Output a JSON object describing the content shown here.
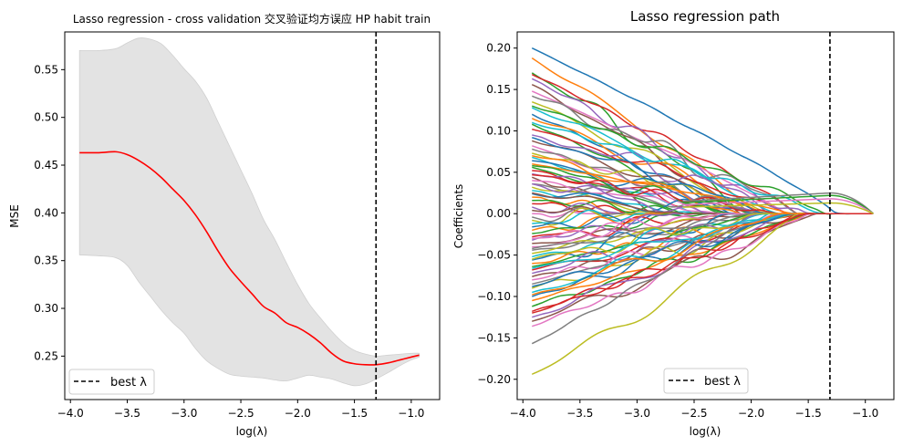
{
  "chart_data": [
    {
      "type": "line",
      "title": "Lasso regression - cross validation 交叉验证均方误应 HP habit train",
      "xlabel": "log(λ)",
      "ylabel": "MSE",
      "xlim": [
        -4.05,
        -0.75
      ],
      "ylim": [
        0.2045,
        0.5895
      ],
      "xticks": [
        -4.0,
        -3.5,
        -3.0,
        -2.5,
        -2.0,
        -1.5,
        -1.0
      ],
      "xtick_labels": [
        "−4.0",
        "−3.5",
        "−3.0",
        "−2.5",
        "−2.0",
        "−1.5",
        "−1.0"
      ],
      "yticks": [
        0.25,
        0.3,
        0.35,
        0.4,
        0.45,
        0.5,
        0.55
      ],
      "ytick_labels": [
        "0.25",
        "0.30",
        "0.35",
        "0.40",
        "0.45",
        "0.50",
        "0.55"
      ],
      "best_lambda_log": -1.31,
      "legend": {
        "label": "best λ",
        "position": "lower-left"
      },
      "series": [
        {
          "color": "#ff0000",
          "x": [
            -3.92,
            -3.75,
            -3.6,
            -3.5,
            -3.4,
            -3.3,
            -3.2,
            -3.1,
            -3.0,
            -2.9,
            -2.8,
            -2.7,
            -2.6,
            -2.5,
            -2.4,
            -2.3,
            -2.2,
            -2.1,
            -2.0,
            -1.9,
            -1.8,
            -1.7,
            -1.6,
            -1.5,
            -1.4,
            -1.31,
            -1.2,
            -1.1,
            -1.0,
            -0.93
          ],
          "y": [
            0.463,
            0.463,
            0.464,
            0.461,
            0.455,
            0.447,
            0.437,
            0.425,
            0.413,
            0.398,
            0.38,
            0.36,
            0.342,
            0.328,
            0.315,
            0.302,
            0.295,
            0.285,
            0.28,
            0.273,
            0.264,
            0.253,
            0.245,
            0.242,
            0.241,
            0.241,
            0.243,
            0.246,
            0.249,
            0.251
          ]
        }
      ],
      "band": {
        "color": "#e3e3e3",
        "x": [
          -3.92,
          -3.75,
          -3.6,
          -3.5,
          -3.4,
          -3.3,
          -3.2,
          -3.1,
          -3.0,
          -2.9,
          -2.8,
          -2.7,
          -2.6,
          -2.5,
          -2.4,
          -2.3,
          -2.2,
          -2.1,
          -2.0,
          -1.9,
          -1.8,
          -1.7,
          -1.6,
          -1.5,
          -1.4,
          -1.31,
          -1.2,
          -1.1,
          -1.0,
          -0.93
        ],
        "upper": [
          0.57,
          0.57,
          0.572,
          0.578,
          0.583,
          0.582,
          0.577,
          0.565,
          0.551,
          0.538,
          0.52,
          0.495,
          0.47,
          0.445,
          0.42,
          0.393,
          0.372,
          0.348,
          0.325,
          0.305,
          0.29,
          0.276,
          0.264,
          0.256,
          0.252,
          0.25,
          0.251,
          0.252,
          0.253,
          0.253
        ],
        "lower": [
          0.356,
          0.355,
          0.353,
          0.345,
          0.328,
          0.313,
          0.298,
          0.285,
          0.274,
          0.258,
          0.245,
          0.237,
          0.231,
          0.229,
          0.228,
          0.227,
          0.225,
          0.224,
          0.227,
          0.23,
          0.228,
          0.226,
          0.222,
          0.219,
          0.221,
          0.226,
          0.233,
          0.24,
          0.246,
          0.249
        ]
      }
    },
    {
      "type": "line",
      "title": "Lasso regression path",
      "xlabel": "log(λ)",
      "ylabel": "Coefficients",
      "xlim": [
        -4.05,
        -0.75
      ],
      "ylim": [
        -0.2245,
        0.2195
      ],
      "xticks": [
        -4.0,
        -3.5,
        -3.0,
        -2.5,
        -2.0,
        -1.5,
        -1.0
      ],
      "xtick_labels": [
        "−4.0",
        "−3.5",
        "−3.0",
        "−2.5",
        "−2.0",
        "−1.5",
        "−1.0"
      ],
      "yticks": [
        -0.2,
        -0.15,
        -0.1,
        -0.05,
        0.0,
        0.05,
        0.1,
        0.15,
        0.2
      ],
      "ytick_labels": [
        "−0.20",
        "−0.15",
        "−0.10",
        "−0.05",
        "0.00",
        "0.05",
        "0.10",
        "0.15",
        "0.20"
      ],
      "best_lambda_log": -1.31,
      "legend": {
        "label": "best λ",
        "position": "lower-center"
      },
      "x_start": -3.92,
      "x_end": -0.93,
      "palette": [
        "#1f77b4",
        "#ff7f0e",
        "#2ca02c",
        "#d62728",
        "#9467bd",
        "#8c564b",
        "#e377c2",
        "#7f7f7f",
        "#bcbd22",
        "#17becf"
      ],
      "coefficients_start": [
        0.2,
        0.188,
        0.17,
        0.168,
        0.163,
        0.156,
        0.148,
        0.142,
        0.135,
        0.128,
        0.12,
        0.115,
        0.108,
        0.102,
        0.095,
        0.088,
        0.082,
        0.078,
        0.073,
        0.068,
        0.064,
        0.06,
        0.056,
        0.052,
        0.048,
        0.044,
        0.04,
        0.036,
        0.032,
        0.028,
        0.024,
        0.02,
        0.016,
        0.012,
        0.008,
        0.004,
        0.0,
        -0.004,
        -0.008,
        -0.012,
        -0.016,
        -0.02,
        -0.024,
        -0.028,
        -0.032,
        -0.036,
        -0.04,
        -0.044,
        -0.048,
        -0.052,
        -0.056,
        -0.06,
        -0.064,
        -0.068,
        -0.072,
        -0.076,
        -0.08,
        -0.085,
        -0.09,
        -0.095,
        -0.1,
        -0.105,
        -0.112,
        -0.118,
        -0.125,
        -0.13,
        -0.136,
        -0.157,
        -0.194,
        0.11,
        0.092,
        0.07,
        0.058,
        0.047,
        0.036,
        0.025,
        -0.03,
        -0.042,
        -0.055,
        -0.066,
        -0.088,
        -0.098,
        0.13,
        -0.12
      ],
      "zero_points": [
        -1.25,
        -1.95,
        -2.05,
        -1.6,
        -1.85,
        -2.1,
        -1.7,
        -1.6,
        -2.0,
        -1.8,
        -2.2,
        -1.9,
        -2.3,
        -1.7,
        -1.5,
        -1.95,
        -2.4,
        -2.1,
        -1.8,
        -2.5,
        -2.0,
        -1.65,
        -2.6,
        -2.2,
        -1.9,
        -2.7,
        -2.3,
        -1.75,
        -2.8,
        -2.5,
        -2.0,
        -3.0,
        -2.4,
        -2.9,
        -3.1,
        -3.3,
        -3.5,
        -3.2,
        -2.9,
        -3.0,
        -2.6,
        -2.8,
        -2.4,
        -2.2,
        -2.7,
        -2.0,
        -2.5,
        -1.9,
        -2.3,
        -1.85,
        -2.1,
        -1.7,
        -2.0,
        -1.6,
        -1.95,
        -1.55,
        -1.8,
        -1.75,
        -1.65,
        -1.85,
        -1.7,
        -1.5,
        -1.55,
        -1.6,
        -1.75,
        -1.45,
        -1.5,
        -2.0,
        -1.6,
        -1.4,
        -1.9,
        -2.1,
        -2.2,
        -1.8,
        -2.4,
        -2.6,
        -2.3,
        -2.0,
        -1.9,
        -1.7,
        -1.65,
        -1.8,
        -1.35,
        -1.55
      ],
      "persistent_coefficients_at_best_lambda": [
        0.025,
        0.022,
        0.018,
        0.013
      ]
    }
  ]
}
